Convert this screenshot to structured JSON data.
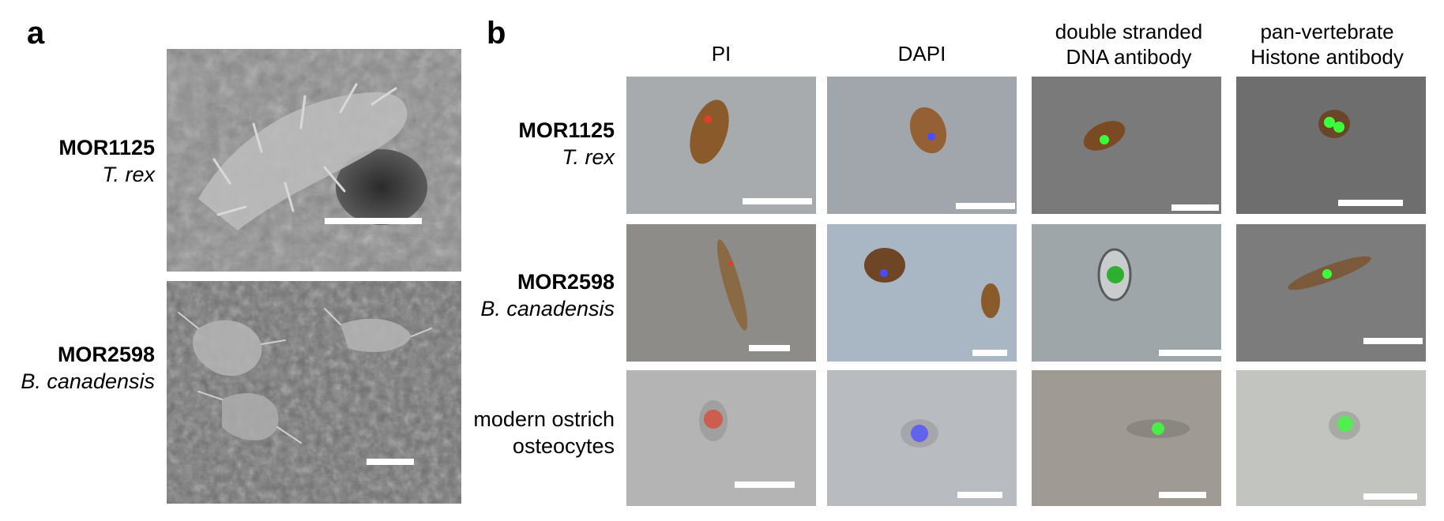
{
  "panels": {
    "a": "a",
    "b": "b"
  },
  "panel_a": {
    "rows": [
      {
        "specimen": "MOR1125",
        "taxon": "T. rex"
      },
      {
        "specimen": "MOR2598",
        "taxon": "B. canadensis"
      }
    ]
  },
  "panel_b": {
    "columns": [
      {
        "line1": "PI",
        "line2": ""
      },
      {
        "line1": "DAPI",
        "line2": ""
      },
      {
        "line1": "double stranded",
        "line2": "DNA antibody"
      },
      {
        "line1": "pan-vertebrate",
        "line2": "Histone antibody"
      }
    ],
    "rows": [
      {
        "specimen": "MOR1125",
        "taxon": "T. rex"
      },
      {
        "specimen": "MOR2598",
        "taxon": "B. canadensis"
      },
      {
        "line1": "modern ostrich",
        "line2": "osteocytes"
      }
    ]
  },
  "colors": {
    "pi_red": "#e0402a",
    "dapi_blue": "#4a4cff",
    "antibody_green": "#3cff3c",
    "cell_brown": "#8a5a2a"
  }
}
